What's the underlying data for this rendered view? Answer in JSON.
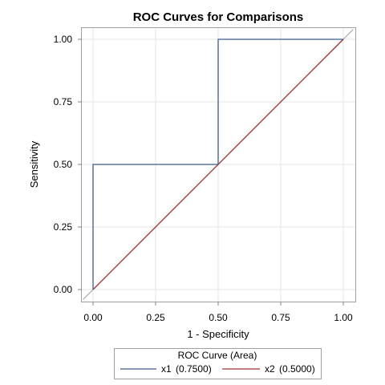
{
  "chart_data": {
    "type": "line",
    "title": "ROC Curves for Comparisons",
    "xlabel": "1 - Specificity",
    "ylabel": "Sensitivity",
    "xlim": [
      -0.04,
      1.04
    ],
    "ylim": [
      -0.04,
      1.04
    ],
    "x_ticks": [
      "0.00",
      "0.25",
      "0.50",
      "0.75",
      "1.00"
    ],
    "y_ticks": [
      "0.00",
      "0.25",
      "0.50",
      "0.75",
      "1.00"
    ],
    "grid": true,
    "reference_line": {
      "points": [
        [
          -0.04,
          -0.04
        ],
        [
          1.04,
          1.04
        ]
      ],
      "color": "#a0a0a0"
    },
    "legend": {
      "title": "ROC Curve (Area)",
      "placement": "bottom"
    },
    "series": [
      {
        "name": "x1",
        "area_label": "(0.7500)",
        "color": "#3f5a8c",
        "points": [
          [
            0,
            0
          ],
          [
            0,
            0.5
          ],
          [
            0.5,
            0.5
          ],
          [
            0.5,
            1
          ],
          [
            1,
            1
          ]
        ]
      },
      {
        "name": "x2",
        "area_label": "(0.5000)",
        "color": "#a0302c",
        "points": [
          [
            0,
            0
          ],
          [
            1,
            1
          ]
        ]
      }
    ]
  }
}
